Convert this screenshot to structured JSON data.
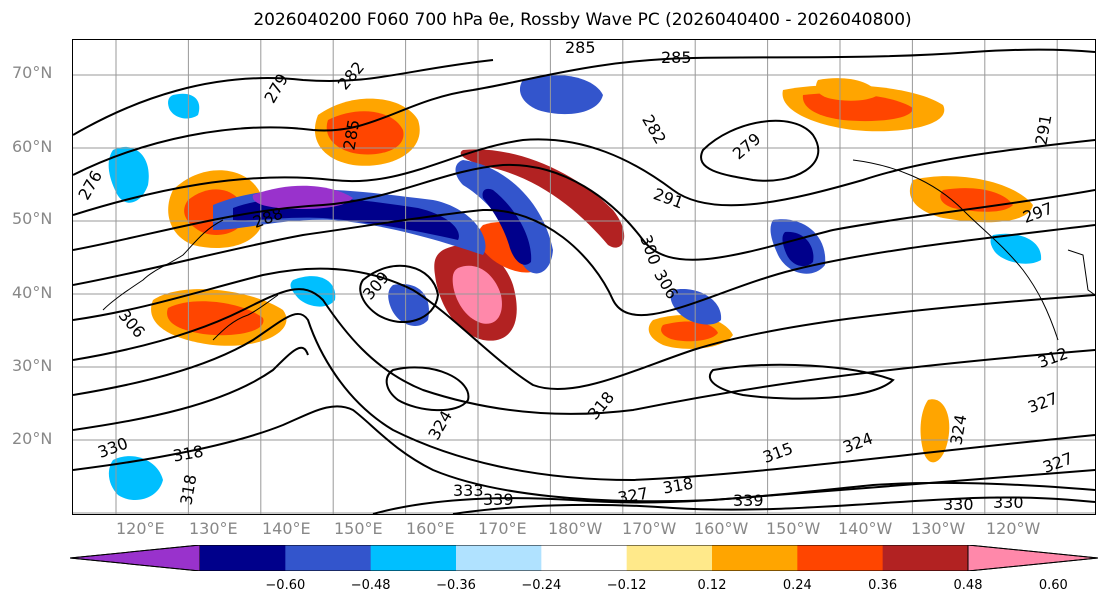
{
  "title": "2026040200 F060 700 hPa θe, Rossby Wave PC (2026040400 - 2026040800)",
  "lat_labels": [
    "70°N",
    "60°N",
    "50°N",
    "40°N",
    "30°N",
    "20°N"
  ],
  "lon_labels": [
    "120°E",
    "130°E",
    "140°E",
    "150°E",
    "160°E",
    "170°E",
    "180°W",
    "170°W",
    "160°W",
    "150°W",
    "140°W",
    "130°W",
    "120°W"
  ],
  "contour_labels": [
    "285",
    "285",
    "282",
    "279",
    "285",
    "282",
    "279",
    "291",
    "288",
    "300",
    "306",
    "309",
    "306",
    "291",
    "297",
    "312",
    "318",
    "324",
    "327",
    "318",
    "315",
    "324",
    "330",
    "333",
    "339",
    "327",
    "318",
    "339",
    "330",
    "318",
    "324",
    "330",
    "327",
    "276"
  ],
  "colorbar": {
    "ticks": [
      "−0.60",
      "−0.48",
      "−0.36",
      "−0.24",
      "−0.12",
      "0.12",
      "0.24",
      "0.36",
      "0.48",
      "0.60"
    ],
    "colors": [
      "#9932cc",
      "#00008b",
      "#3355cc",
      "#00bfff",
      "#b0e2ff",
      "#ffffff",
      "#ffe98a",
      "#ffa500",
      "#ff4500",
      "#b22222",
      "#ff88aa"
    ]
  },
  "field_colors": {
    "neg_strong": "#6a0dad",
    "neg_dark": "#00008b",
    "neg_mid": "#3355cc",
    "neg_light": "#00bfff",
    "neg_pale": "#b0e2ff",
    "pos_pale": "#ffe98a",
    "pos_light": "#ffa500",
    "pos_mid": "#ff4500",
    "pos_dark": "#b22222",
    "pos_strong": "#ff88aa"
  }
}
